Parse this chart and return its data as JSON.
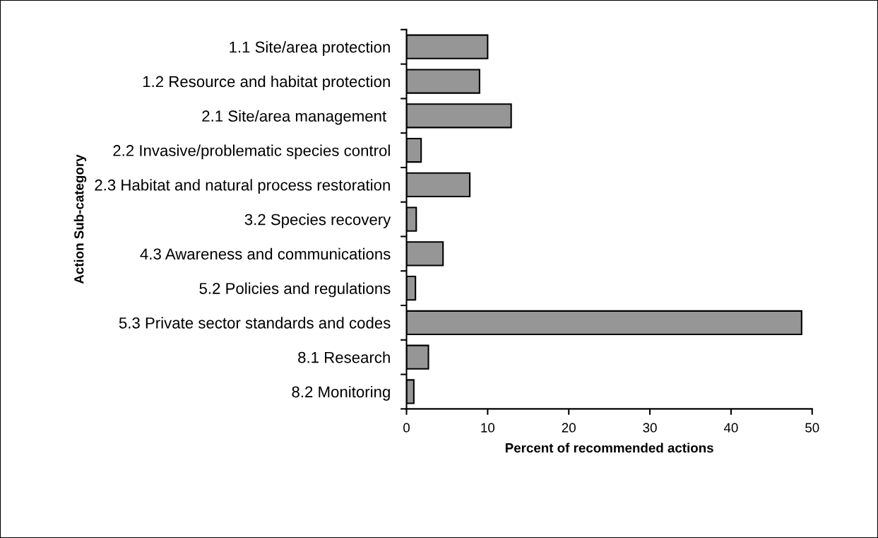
{
  "chart_data": {
    "type": "bar",
    "orientation": "horizontal",
    "xlabel": "Percent of recommended actions",
    "ylabel": "Action Sub-category",
    "categories": [
      "1.1 Site/area protection",
      "1.2 Resource and habitat protection",
      "2.1 Site/area management ",
      "2.2 Invasive/problematic species control",
      "2.3 Habitat and natural process restoration",
      "3.2 Species recovery",
      "4.3 Awareness and communications",
      "5.2 Policies and regulations",
      "5.3 Private sector standards and codes",
      "8.1 Research",
      "8.2 Monitoring"
    ],
    "values": [
      10.0,
      9.0,
      12.9,
      1.8,
      7.8,
      1.2,
      4.5,
      1.1,
      48.7,
      2.7,
      0.9
    ],
    "color": "#969696",
    "xlim": [
      0,
      50
    ],
    "xticks": [
      0,
      10,
      20,
      30,
      40,
      50
    ],
    "grid": false,
    "legend": false
  }
}
